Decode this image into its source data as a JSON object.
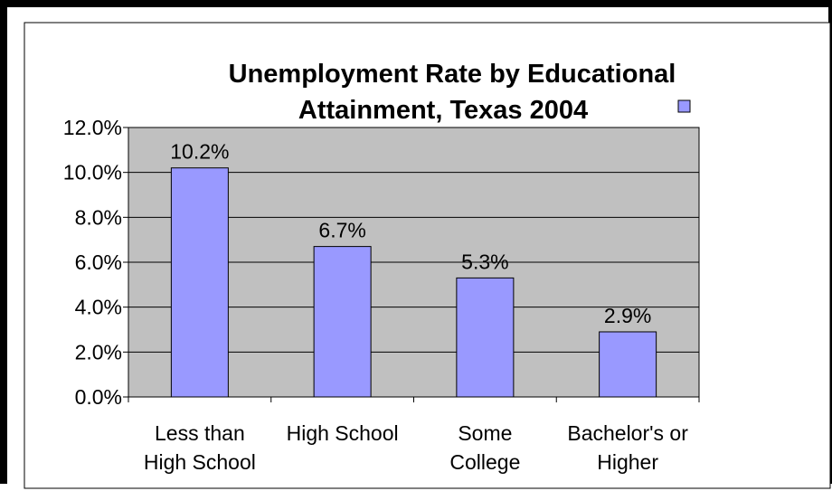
{
  "chart_data": {
    "type": "bar",
    "title_lines": [
      "Unemployment Rate by Educational",
      "Attainment, Texas 2004"
    ],
    "categories": [
      [
        "Less than",
        "High School"
      ],
      [
        "High School"
      ],
      [
        "Some",
        "College"
      ],
      [
        "Bachelor's or",
        "Higher"
      ]
    ],
    "values": [
      10.2,
      6.7,
      5.3,
      2.9
    ],
    "data_labels": [
      "10.2%",
      "6.7%",
      "5.3%",
      "2.9%"
    ],
    "yticks": [
      0,
      2,
      4,
      6,
      8,
      10,
      12
    ],
    "ytick_labels": [
      "0.0%",
      "2.0%",
      "4.0%",
      "6.0%",
      "8.0%",
      "10.0%",
      "12.0%"
    ],
    "ylim": [
      0,
      12
    ],
    "xlabel": "",
    "ylabel": "",
    "grid": true,
    "legend": "top-right",
    "colors": {
      "bar": "#9999ff",
      "plot_background": "#c0c0c0",
      "frame": "#000000"
    }
  }
}
